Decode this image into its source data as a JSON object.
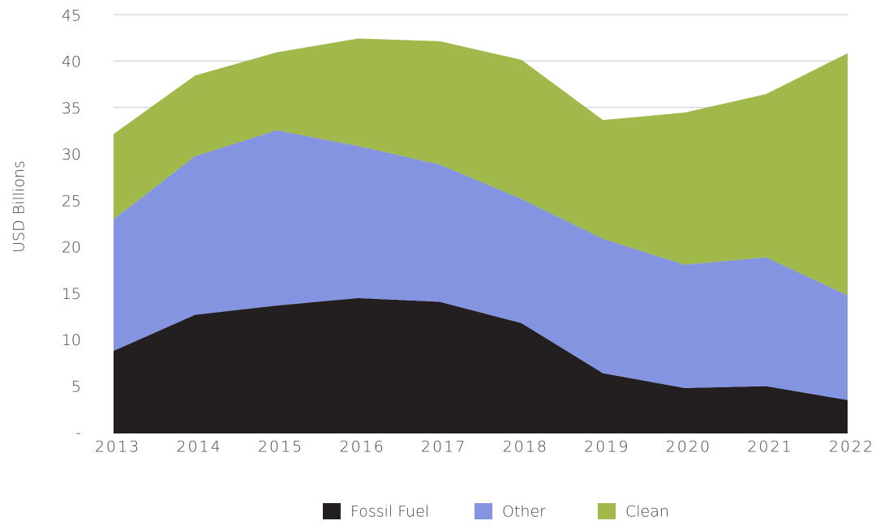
{
  "chart_data": {
    "type": "stacked_area",
    "y_label": "USD Billions",
    "categories": [
      "2013",
      "2014",
      "2015",
      "2016",
      "2017",
      "2018",
      "2019",
      "2020",
      "2021",
      "2022"
    ],
    "series": [
      {
        "name": "Fossil Fuel",
        "color": "#231f20",
        "values": [
          8.9,
          12.8,
          13.8,
          14.6,
          14.2,
          11.9,
          6.5,
          4.9,
          5.1,
          3.6
        ]
      },
      {
        "name": "Other",
        "color": "#8494e0",
        "values": [
          14.2,
          17.1,
          18.9,
          16.4,
          14.8,
          13.4,
          14.5,
          13.3,
          13.9,
          11.3
        ]
      },
      {
        "name": "Clean",
        "color": "#a1b94a",
        "values": [
          9.2,
          8.7,
          8.4,
          11.6,
          13.3,
          15.0,
          12.8,
          16.4,
          17.6,
          26.1
        ]
      }
    ],
    "ylim": [
      0,
      45
    ],
    "yticks": [
      {
        "value": 0,
        "label": "-"
      },
      5,
      10,
      15,
      20,
      25,
      30,
      35,
      40,
      45
    ],
    "grid": true,
    "legend": "bottom"
  }
}
